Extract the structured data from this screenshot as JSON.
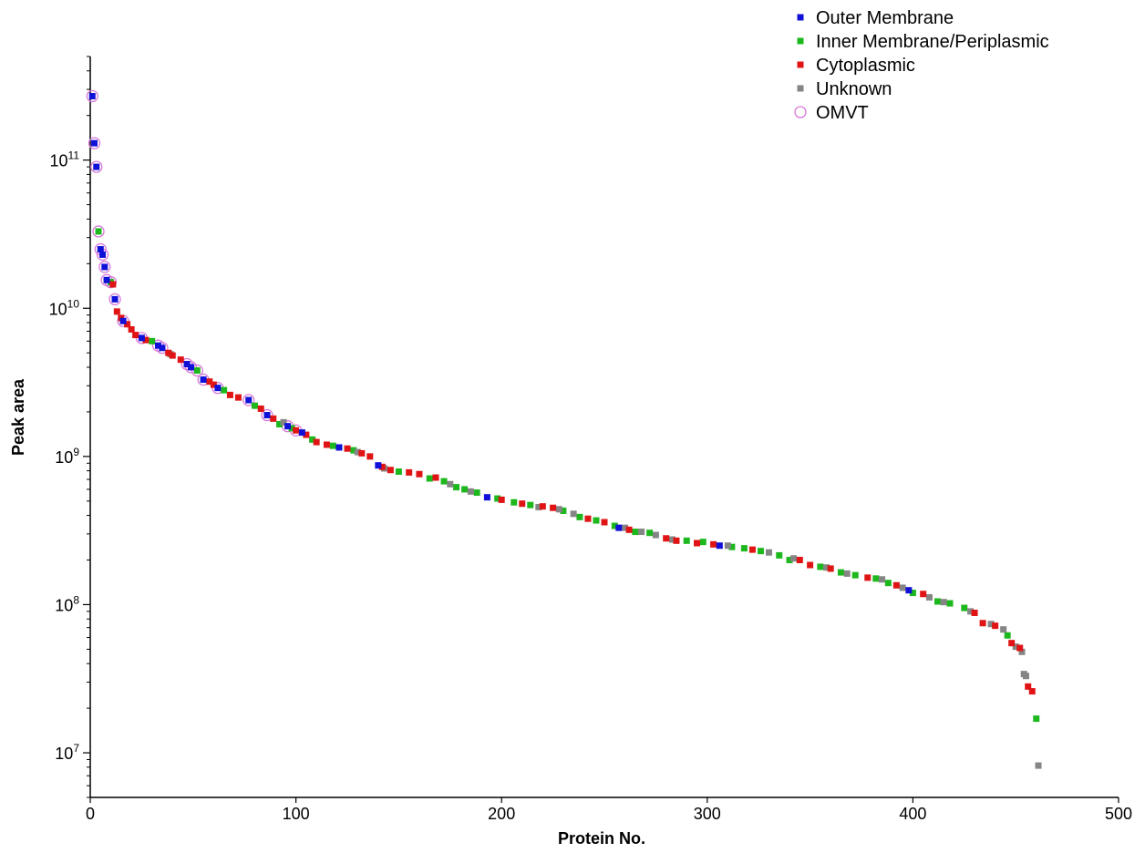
{
  "chart_data": {
    "type": "scatter",
    "title": "",
    "xlabel": "Protein No.",
    "ylabel": "Peak area",
    "xlim": [
      0,
      500
    ],
    "ylim": [
      5000000,
      500000000000
    ],
    "y_scale": "log",
    "x_ticks": [
      0,
      100,
      200,
      300,
      400,
      500
    ],
    "x_tick_labels": [
      "0",
      "100",
      "200",
      "300",
      "400",
      "500"
    ],
    "y_ticks": [
      10000000,
      100000000,
      1000000000,
      10000000000,
      100000000000
    ],
    "y_tick_labels": [
      {
        "base": "10",
        "exp": "7"
      },
      {
        "base": "10",
        "exp": "8"
      },
      {
        "base": "10",
        "exp": "9"
      },
      {
        "base": "10",
        "exp": "10"
      },
      {
        "base": "10",
        "exp": "11"
      }
    ],
    "grid": false,
    "legend_position": "top-right",
    "series": [
      {
        "name": "Outer Membrane",
        "color": "#1010d8",
        "marker": "square",
        "points": [
          [
            1,
            270000000000
          ],
          [
            2,
            130000000000
          ],
          [
            3,
            90000000000
          ],
          [
            5,
            25000000000
          ],
          [
            6,
            23000000000
          ],
          [
            7,
            19000000000
          ],
          [
            8,
            15500000000
          ],
          [
            12,
            11500000000
          ],
          [
            16,
            8200000000
          ],
          [
            25,
            6300000000
          ],
          [
            33,
            5600000000
          ],
          [
            35,
            5400000000
          ],
          [
            47,
            4200000000
          ],
          [
            49,
            4000000000
          ],
          [
            55,
            3300000000
          ],
          [
            62,
            2900000000
          ],
          [
            77,
            2400000000
          ],
          [
            86,
            1900000000
          ],
          [
            96,
            1600000000
          ],
          [
            103,
            1450000000
          ],
          [
            121,
            1150000000
          ],
          [
            140,
            870000000
          ],
          [
            193,
            530000000
          ],
          [
            257,
            330000000
          ],
          [
            306,
            250000000
          ],
          [
            398,
            125000000
          ]
        ]
      },
      {
        "name": "Inner Membrane/Periplasmic",
        "color": "#1db81d",
        "marker": "square",
        "points": [
          [
            4,
            33000000000
          ],
          [
            10,
            15000000000
          ],
          [
            30,
            6000000000
          ],
          [
            52,
            3800000000
          ],
          [
            65,
            2800000000
          ],
          [
            80,
            2200000000
          ],
          [
            92,
            1650000000
          ],
          [
            98,
            1550000000
          ],
          [
            108,
            1300000000
          ],
          [
            118,
            1180000000
          ],
          [
            128,
            1100000000
          ],
          [
            150,
            790000000
          ],
          [
            165,
            710000000
          ],
          [
            172,
            680000000
          ],
          [
            178,
            620000000
          ],
          [
            182,
            600000000
          ],
          [
            188,
            570000000
          ],
          [
            198,
            520000000
          ],
          [
            206,
            490000000
          ],
          [
            214,
            470000000
          ],
          [
            230,
            430000000
          ],
          [
            238,
            390000000
          ],
          [
            246,
            370000000
          ],
          [
            255,
            340000000
          ],
          [
            265,
            310000000
          ],
          [
            272,
            305000000
          ],
          [
            290,
            270000000
          ],
          [
            298,
            265000000
          ],
          [
            312,
            245000000
          ],
          [
            318,
            240000000
          ],
          [
            326,
            230000000
          ],
          [
            335,
            215000000
          ],
          [
            340,
            200000000
          ],
          [
            355,
            180000000
          ],
          [
            365,
            165000000
          ],
          [
            372,
            158000000
          ],
          [
            382,
            150000000
          ],
          [
            388,
            140000000
          ],
          [
            400,
            120000000
          ],
          [
            412,
            105000000
          ],
          [
            418,
            102000000
          ],
          [
            425,
            95000000
          ],
          [
            446,
            62000000
          ],
          [
            460,
            17000000
          ]
        ]
      },
      {
        "name": "Cytoplasmic",
        "color": "#e01414",
        "marker": "square",
        "points": [
          [
            11,
            14500000000
          ],
          [
            13,
            9500000000
          ],
          [
            15,
            8600000000
          ],
          [
            18,
            7800000000
          ],
          [
            20,
            7200000000
          ],
          [
            22,
            6600000000
          ],
          [
            27,
            6100000000
          ],
          [
            38,
            5000000000
          ],
          [
            40,
            4800000000
          ],
          [
            44,
            4500000000
          ],
          [
            58,
            3200000000
          ],
          [
            60,
            3050000000
          ],
          [
            68,
            2600000000
          ],
          [
            72,
            2500000000
          ],
          [
            83,
            2100000000
          ],
          [
            89,
            1800000000
          ],
          [
            100,
            1500000000
          ],
          [
            105,
            1400000000
          ],
          [
            110,
            1250000000
          ],
          [
            115,
            1200000000
          ],
          [
            125,
            1130000000
          ],
          [
            132,
            1050000000
          ],
          [
            136,
            1000000000
          ],
          [
            142,
            850000000
          ],
          [
            146,
            810000000
          ],
          [
            155,
            780000000
          ],
          [
            160,
            760000000
          ],
          [
            168,
            720000000
          ],
          [
            200,
            510000000
          ],
          [
            210,
            480000000
          ],
          [
            220,
            460000000
          ],
          [
            225,
            450000000
          ],
          [
            242,
            380000000
          ],
          [
            250,
            360000000
          ],
          [
            262,
            320000000
          ],
          [
            280,
            280000000
          ],
          [
            285,
            270000000
          ],
          [
            295,
            260000000
          ],
          [
            303,
            255000000
          ],
          [
            322,
            235000000
          ],
          [
            345,
            200000000
          ],
          [
            350,
            185000000
          ],
          [
            360,
            175000000
          ],
          [
            378,
            152000000
          ],
          [
            392,
            135000000
          ],
          [
            405,
            118000000
          ],
          [
            430,
            88000000
          ],
          [
            434,
            75000000
          ],
          [
            440,
            72000000
          ],
          [
            448,
            55000000
          ],
          [
            452,
            51000000
          ],
          [
            456,
            28000000
          ],
          [
            458,
            26000000
          ]
        ]
      },
      {
        "name": "Unknown",
        "color": "#858585",
        "marker": "square",
        "points": [
          [
            39,
            4900000000
          ],
          [
            94,
            1700000000
          ],
          [
            130,
            1070000000
          ],
          [
            143,
            830000000
          ],
          [
            175,
            650000000
          ],
          [
            185,
            580000000
          ],
          [
            218,
            455000000
          ],
          [
            228,
            440000000
          ],
          [
            235,
            410000000
          ],
          [
            260,
            330000000
          ],
          [
            268,
            310000000
          ],
          [
            275,
            295000000
          ],
          [
            283,
            275000000
          ],
          [
            310,
            250000000
          ],
          [
            330,
            225000000
          ],
          [
            342,
            205000000
          ],
          [
            358,
            178000000
          ],
          [
            368,
            162000000
          ],
          [
            385,
            148000000
          ],
          [
            395,
            130000000
          ],
          [
            408,
            112000000
          ],
          [
            415,
            104000000
          ],
          [
            428,
            90000000
          ],
          [
            438,
            74000000
          ],
          [
            444,
            68000000
          ],
          [
            450,
            52000000
          ],
          [
            453,
            48000000
          ],
          [
            454,
            34000000
          ],
          [
            455,
            33000000
          ],
          [
            461,
            8200000
          ]
        ]
      },
      {
        "name": "OMVT",
        "color": "#d878d8",
        "marker": "open-circle",
        "points": [
          [
            1,
            270000000000
          ],
          [
            2,
            130000000000
          ],
          [
            3,
            90000000000
          ],
          [
            4,
            33000000000
          ],
          [
            5,
            25000000000
          ],
          [
            6,
            23000000000
          ],
          [
            7,
            19000000000
          ],
          [
            8,
            15500000000
          ],
          [
            10,
            15000000000
          ],
          [
            12,
            11500000000
          ],
          [
            16,
            8200000000
          ],
          [
            25,
            6300000000
          ],
          [
            33,
            5600000000
          ],
          [
            35,
            5400000000
          ],
          [
            47,
            4200000000
          ],
          [
            49,
            4000000000
          ],
          [
            52,
            3800000000
          ],
          [
            55,
            3300000000
          ],
          [
            62,
            2900000000
          ],
          [
            77,
            2400000000
          ],
          [
            86,
            1900000000
          ],
          [
            96,
            1600000000
          ],
          [
            100,
            1500000000
          ]
        ]
      }
    ]
  }
}
